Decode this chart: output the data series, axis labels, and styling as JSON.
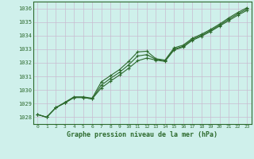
{
  "title": "Graphe pression niveau de la mer (hPa)",
  "bg_color": "#cff0eb",
  "line_color": "#2d6a2d",
  "grid_color": "#c8bcd0",
  "xlim": [
    -0.5,
    23.5
  ],
  "ylim": [
    1027.5,
    1036.5
  ],
  "yticks": [
    1028,
    1029,
    1030,
    1031,
    1032,
    1033,
    1034,
    1035,
    1036
  ],
  "xticks": [
    0,
    1,
    2,
    3,
    4,
    5,
    6,
    7,
    8,
    9,
    10,
    11,
    12,
    13,
    14,
    15,
    16,
    17,
    18,
    19,
    20,
    21,
    22,
    23
  ],
  "line1": [
    1028.2,
    1028.0,
    1028.7,
    1029.1,
    1029.5,
    1029.5,
    1029.4,
    1030.6,
    1031.05,
    1031.5,
    1032.1,
    1032.8,
    1032.85,
    1032.3,
    1032.2,
    1033.1,
    1033.3,
    1033.8,
    1034.1,
    1034.45,
    1034.85,
    1035.3,
    1035.7,
    1036.05
  ],
  "line2": [
    1028.2,
    1028.0,
    1028.7,
    1029.05,
    1029.45,
    1029.45,
    1029.35,
    1030.15,
    1030.65,
    1031.1,
    1031.6,
    1032.15,
    1032.35,
    1032.2,
    1032.1,
    1032.95,
    1033.15,
    1033.65,
    1033.95,
    1034.3,
    1034.7,
    1035.1,
    1035.5,
    1035.85
  ],
  "line3": [
    1028.2,
    1028.0,
    1028.7,
    1029.05,
    1029.45,
    1029.45,
    1029.35,
    1030.35,
    1030.85,
    1031.3,
    1031.85,
    1032.5,
    1032.6,
    1032.25,
    1032.15,
    1033.0,
    1033.22,
    1033.72,
    1034.02,
    1034.37,
    1034.77,
    1035.2,
    1035.6,
    1035.95
  ]
}
